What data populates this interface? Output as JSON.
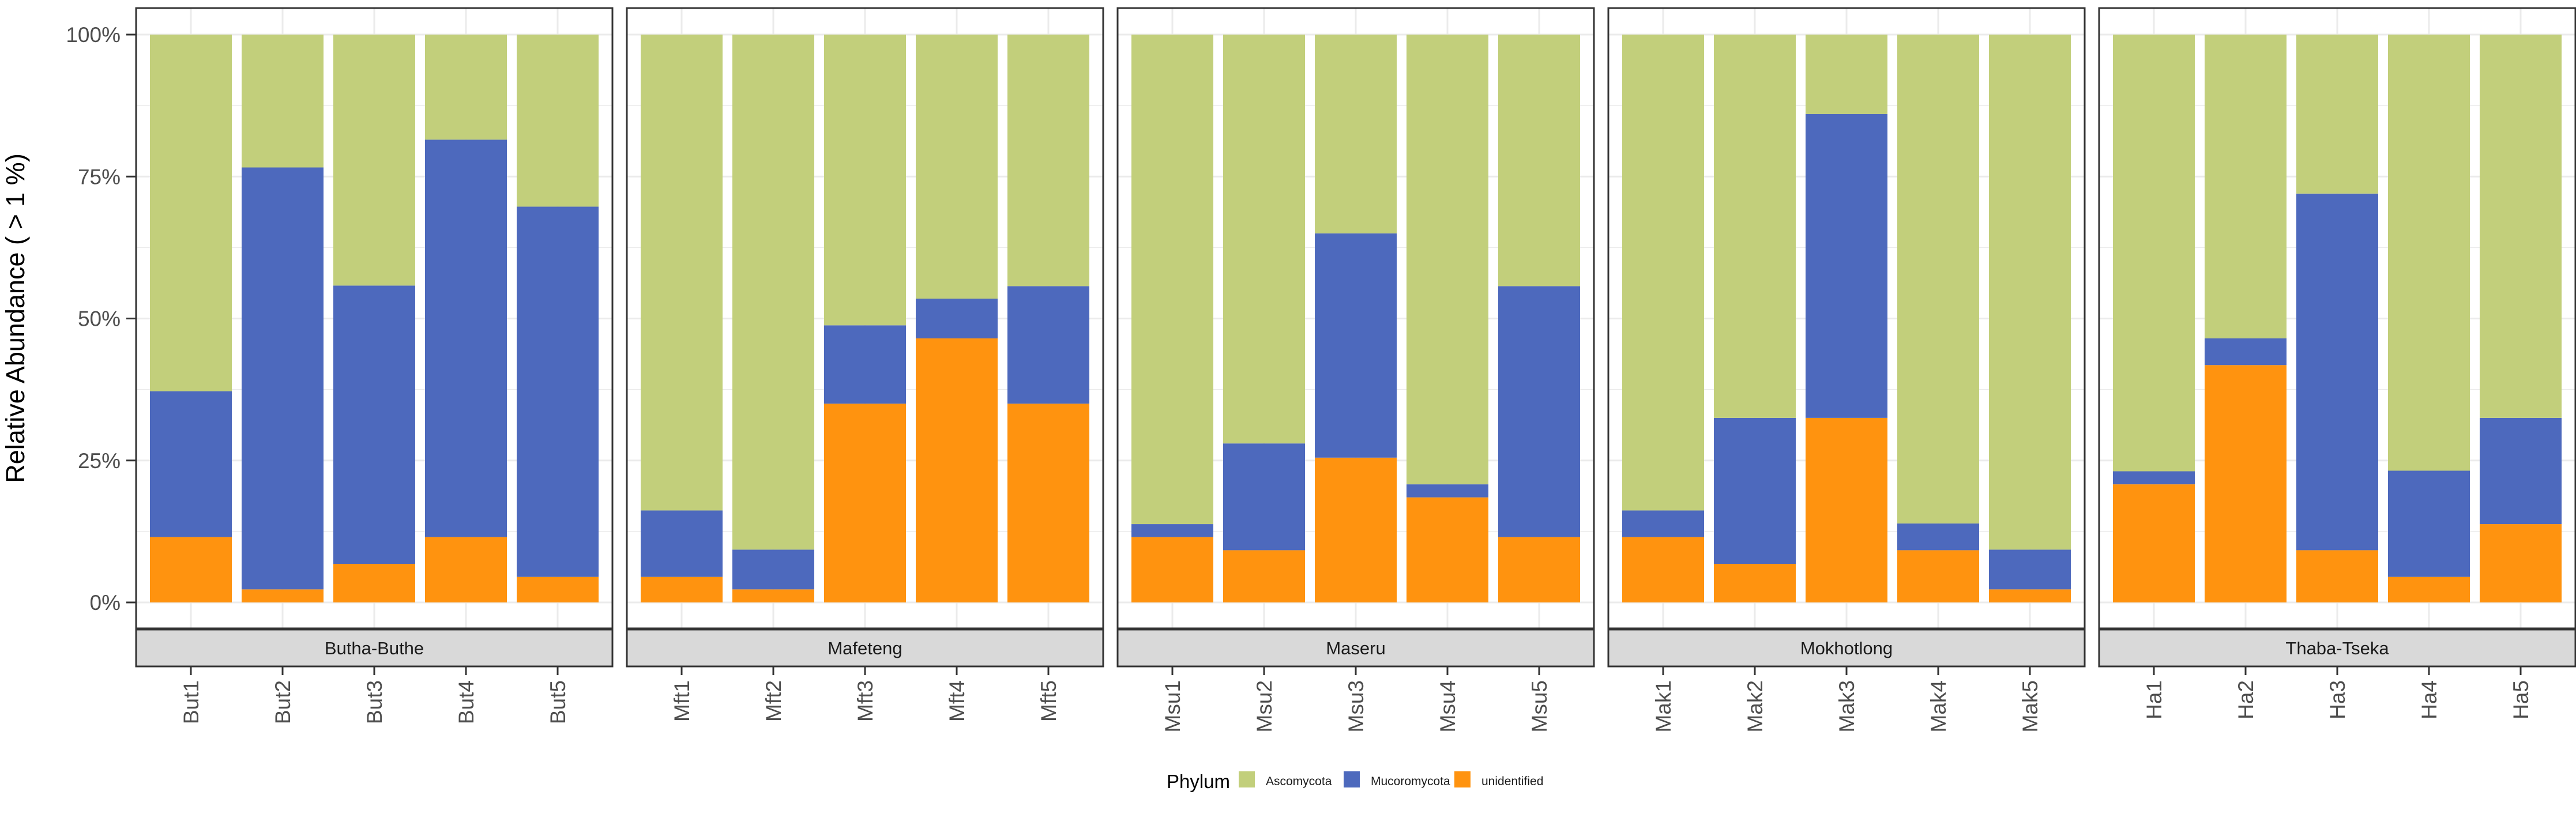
{
  "chart_data": {
    "type": "bar",
    "stacked": true,
    "faceted": true,
    "ylabel": "Relative Abundance ( > 1 %)",
    "ylim": [
      0,
      1
    ],
    "yticks": [
      "0%",
      "25%",
      "50%",
      "75%",
      "100%"
    ],
    "ytick_values": [
      0,
      0.25,
      0.5,
      0.75,
      1.0
    ],
    "grid": true,
    "legend": {
      "title": "Phylum",
      "position": "bottom",
      "entries": [
        "Ascomycota",
        "Mucoromycota",
        "unidentified"
      ]
    },
    "series_colors": {
      "Ascomycota": "#C2CF7B",
      "Mucoromycota": "#4D69BD",
      "unidentified": "#FF930F"
    },
    "facets": [
      {
        "name": "Butha-Buthe",
        "categories": [
          "But1",
          "But2",
          "But3",
          "But4",
          "But5"
        ],
        "series": [
          {
            "name": "unidentified",
            "values": [
              0.115,
              0.023,
              0.068,
              0.115,
              0.045
            ]
          },
          {
            "name": "Mucoromycota",
            "values": [
              0.257,
              0.743,
              0.49,
              0.7,
              0.652
            ]
          },
          {
            "name": "Ascomycota",
            "values": [
              0.628,
              0.234,
              0.442,
              0.185,
              0.303
            ]
          }
        ]
      },
      {
        "name": "Mafeteng",
        "categories": [
          "Mft1",
          "Mft2",
          "Mft3",
          "Mft4",
          "Mft5"
        ],
        "series": [
          {
            "name": "unidentified",
            "values": [
              0.045,
              0.023,
              0.35,
              0.465,
              0.35
            ]
          },
          {
            "name": "Mucoromycota",
            "values": [
              0.117,
              0.07,
              0.138,
              0.07,
              0.207
            ]
          },
          {
            "name": "Ascomycota",
            "values": [
              0.838,
              0.907,
              0.512,
              0.465,
              0.443
            ]
          }
        ]
      },
      {
        "name": "Maseru",
        "categories": [
          "Msu1",
          "Msu2",
          "Msu3",
          "Msu4",
          "Msu5"
        ],
        "series": [
          {
            "name": "unidentified",
            "values": [
              0.115,
              0.092,
              0.255,
              0.185,
              0.115
            ]
          },
          {
            "name": "Mucoromycota",
            "values": [
              0.023,
              0.188,
              0.395,
              0.023,
              0.442
            ]
          },
          {
            "name": "Ascomycota",
            "values": [
              0.862,
              0.72,
              0.35,
              0.792,
              0.443
            ]
          }
        ]
      },
      {
        "name": "Mokhotlong",
        "categories": [
          "Mak1",
          "Mak2",
          "Mak3",
          "Mak4",
          "Mak5"
        ],
        "series": [
          {
            "name": "unidentified",
            "values": [
              0.115,
              0.068,
              0.325,
              0.092,
              0.023
            ]
          },
          {
            "name": "Mucoromycota",
            "values": [
              0.047,
              0.257,
              0.535,
              0.047,
              0.07
            ]
          },
          {
            "name": "Ascomycota",
            "values": [
              0.838,
              0.675,
              0.14,
              0.861,
              0.907
            ]
          }
        ]
      },
      {
        "name": "Thaba-Tseka",
        "categories": [
          "Ha1",
          "Ha2",
          "Ha3",
          "Ha4",
          "Ha5"
        ],
        "series": [
          {
            "name": "unidentified",
            "values": [
              0.208,
              0.418,
              0.092,
              0.045,
              0.138
            ]
          },
          {
            "name": "Mucoromycota",
            "values": [
              0.023,
              0.047,
              0.628,
              0.187,
              0.187
            ]
          },
          {
            "name": "Ascomycota",
            "values": [
              0.769,
              0.535,
              0.28,
              0.768,
              0.675
            ]
          }
        ]
      }
    ]
  }
}
